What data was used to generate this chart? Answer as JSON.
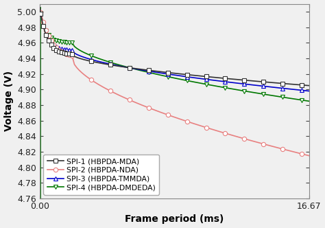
{
  "title": "",
  "xlabel": "Frame period (ms)",
  "ylabel": "Voltage (V)",
  "xlim": [
    0.0,
    16.67
  ],
  "ylim": [
    4.76,
    5.01
  ],
  "yticks": [
    4.76,
    4.78,
    4.8,
    4.82,
    4.84,
    4.86,
    4.88,
    4.9,
    4.92,
    4.94,
    4.96,
    4.98,
    5.0
  ],
  "xticks": [
    0.0,
    16.67
  ],
  "xticklabels": [
    "0.00",
    "16.67"
  ],
  "legend": [
    {
      "label": "SPI-1 (HBPDA-MDA)",
      "color": "#333333",
      "marker": "s",
      "linestyle": "-"
    },
    {
      "label": "SPI-2 (HBPDA-NDA)",
      "color": "#e88080",
      "marker": "o",
      "linestyle": "-"
    },
    {
      "label": "SPI-3 (HBPDA-TMMDA)",
      "color": "#0000cc",
      "marker": "^",
      "linestyle": "-"
    },
    {
      "label": "SPI-4 (HBPDA-DMDEDA)",
      "color": "#007700",
      "marker": "v",
      "linestyle": "-"
    }
  ],
  "bg_color": "#f0f0f0",
  "marker_size": 4.5,
  "line_width": 1.2,
  "font_size": 9,
  "label_font_size": 10,
  "legend_font_size": 7.8
}
